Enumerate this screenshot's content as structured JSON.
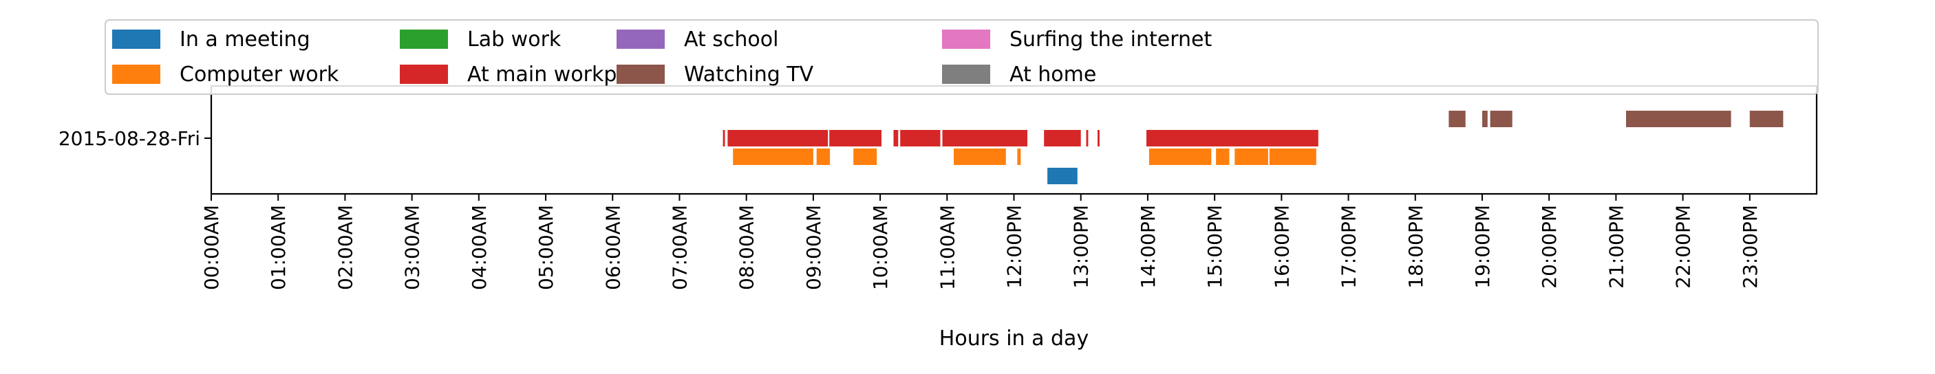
{
  "chart_data": {
    "type": "bar",
    "orientation": "horizontal-timeline",
    "xlabel": "Hours in a day",
    "ylabel": "",
    "xlim": [
      0,
      24
    ],
    "x_ticks": [
      {
        "value": 0,
        "label": "00:00AM"
      },
      {
        "value": 1,
        "label": "01:00AM"
      },
      {
        "value": 2,
        "label": "02:00AM"
      },
      {
        "value": 3,
        "label": "03:00AM"
      },
      {
        "value": 4,
        "label": "04:00AM"
      },
      {
        "value": 5,
        "label": "05:00AM"
      },
      {
        "value": 6,
        "label": "06:00AM"
      },
      {
        "value": 7,
        "label": "07:00AM"
      },
      {
        "value": 8,
        "label": "08:00AM"
      },
      {
        "value": 9,
        "label": "09:00AM"
      },
      {
        "value": 10,
        "label": "10:00AM"
      },
      {
        "value": 11,
        "label": "11:00AM"
      },
      {
        "value": 12,
        "label": "12:00PM"
      },
      {
        "value": 13,
        "label": "13:00PM"
      },
      {
        "value": 14,
        "label": "14:00PM"
      },
      {
        "value": 15,
        "label": "15:00PM"
      },
      {
        "value": 16,
        "label": "16:00PM"
      },
      {
        "value": 17,
        "label": "17:00PM"
      },
      {
        "value": 18,
        "label": "18:00PM"
      },
      {
        "value": 19,
        "label": "19:00PM"
      },
      {
        "value": 20,
        "label": "20:00PM"
      },
      {
        "value": 21,
        "label": "21:00PM"
      },
      {
        "value": 22,
        "label": "22:00PM"
      },
      {
        "value": 23,
        "label": "23:00PM"
      }
    ],
    "y_category": "2015-08-28-Fri",
    "legend_position": "top",
    "grid": false,
    "series": [
      {
        "name": "In a meeting",
        "color": "#1f77b4",
        "lane": 0,
        "intervals": [
          [
            12.5,
            12.95
          ]
        ]
      },
      {
        "name": "Computer work",
        "color": "#ff7f0e",
        "lane": 1,
        "intervals": [
          [
            7.8,
            9.0
          ],
          [
            9.05,
            9.25
          ],
          [
            9.6,
            9.95
          ],
          [
            11.1,
            11.88
          ],
          [
            12.05,
            12.1
          ],
          [
            14.02,
            14.95
          ],
          [
            15.02,
            15.22
          ],
          [
            15.3,
            15.8
          ],
          [
            15.82,
            16.52
          ]
        ]
      },
      {
        "name": "Lab work",
        "color": "#2ca02c",
        "lane": 2,
        "intervals": []
      },
      {
        "name": "At main workplace",
        "color": "#d62728",
        "lane": 2,
        "intervals": [
          [
            7.65,
            7.68
          ],
          [
            7.72,
            9.22
          ],
          [
            9.24,
            10.02
          ],
          [
            10.2,
            10.27
          ],
          [
            10.3,
            10.9
          ],
          [
            10.93,
            12.2
          ],
          [
            12.45,
            13.0
          ],
          [
            13.08,
            13.11
          ],
          [
            13.25,
            13.28
          ],
          [
            13.98,
            16.55
          ]
        ]
      },
      {
        "name": "At school",
        "color": "#9467bd",
        "lane": 3,
        "intervals": []
      },
      {
        "name": "Watching TV",
        "color": "#8c564b",
        "lane": 3,
        "intervals": [
          [
            18.5,
            18.75
          ],
          [
            19.0,
            19.08
          ],
          [
            19.12,
            19.45
          ],
          [
            21.15,
            22.72
          ],
          [
            23.0,
            23.5
          ]
        ]
      },
      {
        "name": "Surfing the internet",
        "color": "#e377c2",
        "lane": 4,
        "intervals": []
      },
      {
        "name": "At home",
        "color": "#7f7f7f",
        "lane": 4,
        "intervals": []
      }
    ]
  }
}
